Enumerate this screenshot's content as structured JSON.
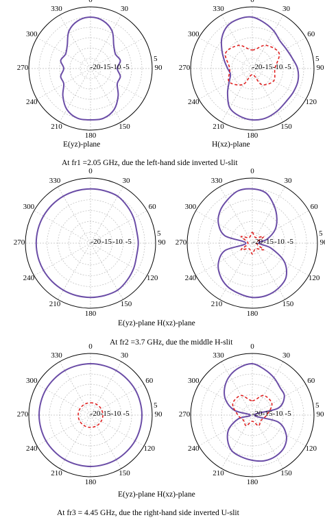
{
  "colors": {
    "copol": "#6a4ca6",
    "crosspol": "#e02020",
    "grid": "#bbbbbb",
    "frame": "#000000"
  },
  "labels": {
    "plane_e": "E(yz)-plane",
    "plane_h": "H(xz)-plane",
    "plane_pair": "E(yz)-plane H(xz)-plane",
    "row1_caption": "At fr1 =2.05 GHz, due the left-hand side inverted U-slit",
    "row2_caption": "At fr2 =3.7 GHz, due the middle H-slit",
    "row3_caption": "At fr3 = 4.45 GHz, due the right-hand side inverted U-slit"
  },
  "chart_data": [
    {
      "type": "polar",
      "name_key": "E(yz)-plane 2.05 GHz",
      "angle_ticks": [
        "0",
        "30",
        "90",
        "150",
        "180",
        "210",
        "240",
        "270",
        "300",
        "330"
      ],
      "radial_ticks": [
        "-20",
        "-15",
        "-10",
        "-5",
        "5"
      ],
      "rlim": [
        -25,
        5
      ],
      "series": [
        {
          "style": "solid",
          "angles": [
            0,
            15,
            30,
            45,
            60,
            75,
            90,
            105,
            120,
            135,
            150,
            165,
            180,
            195,
            210,
            225,
            240,
            255,
            270,
            285,
            300,
            315,
            330,
            345
          ],
          "values": [
            0,
            -1,
            -4,
            -9,
            -11,
            -10,
            -12,
            -10,
            -10,
            -6,
            -2,
            0,
            0,
            0,
            -2,
            -6,
            -10,
            -10,
            -12,
            -10,
            -11,
            -9,
            -4,
            -1
          ]
        }
      ]
    },
    {
      "type": "polar",
      "name_key": "H(xz)-plane 2.05 GHz",
      "angle_ticks": [
        "0",
        "30",
        "60",
        "90",
        "120",
        "150",
        "180",
        "210",
        "240",
        "270",
        "300",
        "330"
      ],
      "radial_ticks": [
        "-20",
        "-15",
        "-10",
        "-5",
        "5"
      ],
      "rlim": [
        -25,
        5
      ],
      "series": [
        {
          "style": "solid",
          "angles": [
            0,
            15,
            30,
            45,
            60,
            75,
            90,
            105,
            120,
            135,
            150,
            165,
            180,
            195,
            210,
            225,
            240,
            255,
            270,
            285,
            300,
            315,
            330,
            345
          ],
          "values": [
            0,
            -2,
            -4,
            -6,
            -6,
            -5,
            -3,
            -2,
            -2,
            -2,
            -1,
            0,
            0,
            -1,
            -3,
            -8,
            -12,
            -14,
            -13,
            -11,
            -8,
            -4,
            -1,
            0
          ]
        },
        {
          "style": "dashed",
          "angles": [
            0,
            30,
            60,
            90,
            120,
            150,
            180,
            210,
            240,
            270,
            300,
            330
          ],
          "values": [
            -16,
            -12,
            -10,
            -14,
            -13,
            -16,
            -22,
            -16,
            -12,
            -14,
            -10,
            -12
          ]
        }
      ]
    },
    {
      "type": "polar",
      "name_key": "E(yz)-plane 3.7 GHz",
      "angle_ticks": [
        "0",
        "30",
        "60",
        "90",
        "120",
        "150",
        "180",
        "210",
        "240",
        "270",
        "300",
        "330"
      ],
      "radial_ticks": [
        "-20",
        "-15",
        "-10",
        "-5",
        "5"
      ],
      "rlim": [
        -25,
        5
      ],
      "series": [
        {
          "style": "solid",
          "angles": [
            0,
            15,
            30,
            45,
            60,
            75,
            90,
            105,
            120,
            135,
            150,
            165,
            180,
            195,
            210,
            225,
            240,
            255,
            270,
            285,
            300,
            315,
            330,
            345
          ],
          "values": [
            0,
            0,
            0,
            -1,
            -2,
            -3,
            -3,
            -3,
            -2,
            -1,
            0,
            0,
            0,
            0,
            0,
            0,
            0,
            0,
            0,
            0,
            0,
            0,
            0,
            0
          ]
        }
      ]
    },
    {
      "type": "polar",
      "name_key": "H(xz)-plane 3.7 GHz",
      "angle_ticks": [
        "0",
        "30",
        "60",
        "90",
        "120",
        "150",
        "180",
        "210",
        "240",
        "270",
        "300",
        "330"
      ],
      "radial_ticks": [
        "-20",
        "-15",
        "-10",
        "-5",
        "5"
      ],
      "rlim": [
        -25,
        5
      ],
      "series": [
        {
          "style": "solid",
          "angles": [
            0,
            15,
            30,
            45,
            60,
            75,
            90,
            105,
            120,
            135,
            150,
            165,
            180,
            195,
            210,
            225,
            240,
            255,
            270,
            285,
            300,
            315,
            330,
            345
          ],
          "values": [
            0,
            -1,
            -5,
            -9,
            -13,
            -18,
            -22,
            -16,
            -8,
            -3,
            -1,
            0,
            0,
            -1,
            -2,
            -4,
            -7,
            -12,
            -22,
            -12,
            -7,
            -4,
            -2,
            0
          ]
        },
        {
          "style": "dashed",
          "angles": [
            0,
            30,
            60,
            90,
            120,
            150,
            180,
            210,
            240,
            270,
            300,
            330
          ],
          "values": [
            -20,
            -22,
            -19,
            -23,
            -19,
            -22,
            -20,
            -22,
            -19,
            -23,
            -19,
            -22
          ]
        }
      ]
    },
    {
      "type": "polar",
      "name_key": "E(yz)-plane 4.45 GHz",
      "angle_ticks": [
        "0",
        "30",
        "60",
        "90",
        "120",
        "150",
        "180",
        "210",
        "240",
        "270",
        "300",
        "330"
      ],
      "radial_ticks": [
        "-20",
        "-15",
        "-10",
        "-5",
        "5"
      ],
      "rlim": [
        -25,
        5
      ],
      "series": [
        {
          "style": "solid",
          "angles": [
            0,
            30,
            60,
            90,
            120,
            150,
            180,
            210,
            240,
            270,
            300,
            330
          ],
          "values": [
            0,
            0,
            0,
            0,
            0,
            0,
            0,
            0,
            0,
            0,
            0,
            0
          ]
        },
        {
          "style": "dashed",
          "angles": [
            0,
            30,
            60,
            90,
            120,
            150,
            180,
            210,
            240,
            270,
            300,
            330
          ],
          "values": [
            -19,
            -19,
            -19,
            -19,
            -19,
            -19,
            -19,
            -19,
            -19,
            -19,
            -19,
            -19
          ]
        }
      ]
    },
    {
      "type": "polar",
      "name_key": "H(xz)-plane 4.45 GHz",
      "angle_ticks": [
        "0",
        "30",
        "60",
        "90",
        "120",
        "150",
        "180",
        "210",
        "240",
        "270",
        "300",
        "330"
      ],
      "radial_ticks": [
        "-20",
        "-15",
        "-10",
        "-5",
        "5"
      ],
      "rlim": [
        -25,
        5
      ],
      "series": [
        {
          "style": "solid",
          "angles": [
            0,
            15,
            30,
            45,
            60,
            75,
            90,
            105,
            120,
            135,
            150,
            165,
            180,
            195,
            210,
            225,
            240,
            255,
            270,
            285,
            300,
            315,
            330,
            345
          ],
          "values": [
            0,
            -2,
            -4,
            -6,
            -7,
            -12,
            -24,
            -12,
            -6,
            -3,
            -2,
            -2,
            -3,
            -4,
            -5,
            -8,
            -12,
            -18,
            -24,
            -16,
            -10,
            -6,
            -3,
            -1
          ]
        },
        {
          "style": "dashed",
          "angles": [
            0,
            30,
            60,
            90,
            120,
            150,
            180,
            210,
            240,
            270,
            300,
            330
          ],
          "values": [
            -18,
            -14,
            -14,
            -18,
            -20,
            -19,
            -22,
            -19,
            -20,
            -18,
            -14,
            -14
          ]
        }
      ]
    }
  ]
}
